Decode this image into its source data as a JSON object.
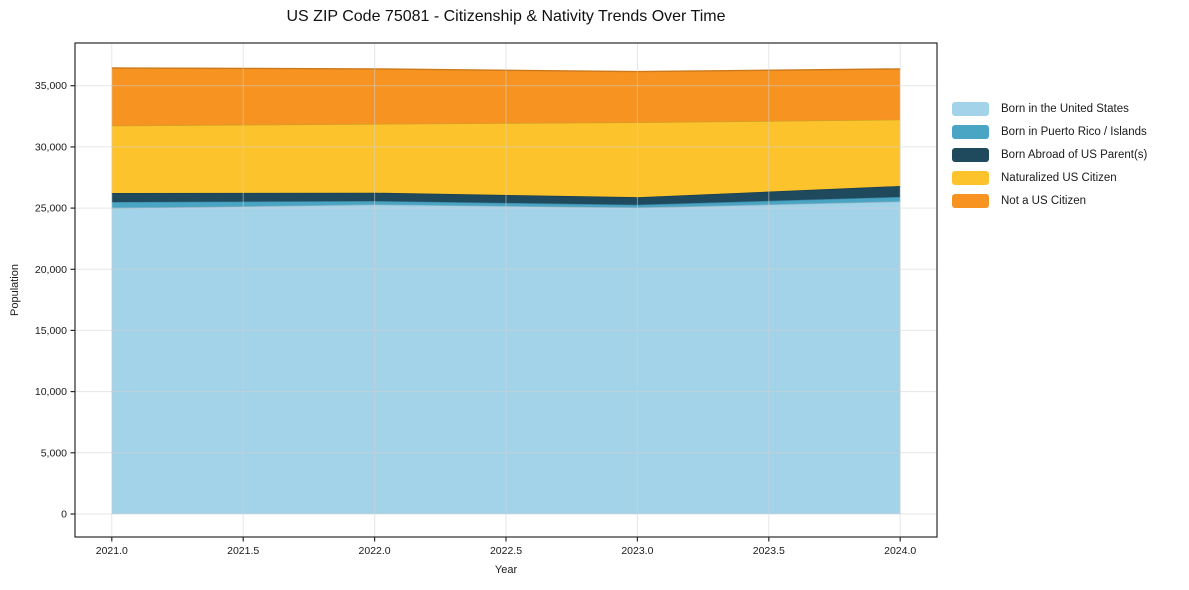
{
  "chart_data": {
    "type": "area",
    "stacked": true,
    "title": "US ZIP Code 75081 - Citizenship & Nativity Trends Over Time",
    "xlabel": "Year",
    "ylabel": "Population",
    "x": [
      2021,
      2022,
      2023,
      2024
    ],
    "series": [
      {
        "name": "Born in the United States",
        "color": "#a3d3e8",
        "values": [
          25000,
          25300,
          25050,
          25550
        ]
      },
      {
        "name": "Born in Puerto Rico / Islands",
        "color": "#4aa5c5",
        "values": [
          500,
          280,
          220,
          360
        ]
      },
      {
        "name": "Born Abroad of US Parent(s)",
        "color": "#1f4a5e",
        "values": [
          730,
          680,
          620,
          890
        ]
      },
      {
        "name": "Naturalized US Citizen",
        "color": "#fcc32d",
        "values": [
          5510,
          5620,
          6120,
          5430
        ]
      },
      {
        "name": "Not a US Citizen",
        "color": "#f79421",
        "values": [
          4710,
          4490,
          4140,
          4140
        ]
      }
    ],
    "totals": [
      36450,
      36370,
      36150,
      36370
    ],
    "xlim": [
      2020.86,
      2024.14
    ],
    "ylim": [
      -1880,
      38490
    ],
    "x_ticks": [
      2021.0,
      2021.5,
      2022.0,
      2022.5,
      2023.0,
      2023.5,
      2024.0
    ],
    "x_tick_labels": [
      "2021.0",
      "2021.5",
      "2022.0",
      "2022.5",
      "2023.0",
      "2023.5",
      "2024.0"
    ],
    "y_ticks": [
      0,
      5000,
      10000,
      15000,
      20000,
      25000,
      30000,
      35000
    ],
    "y_tick_labels": [
      "0",
      "5,000",
      "10,000",
      "15,000",
      "20,000",
      "25,000",
      "30,000",
      "35,000"
    ],
    "grid": true,
    "legend_position": "right of plot, upper area"
  }
}
